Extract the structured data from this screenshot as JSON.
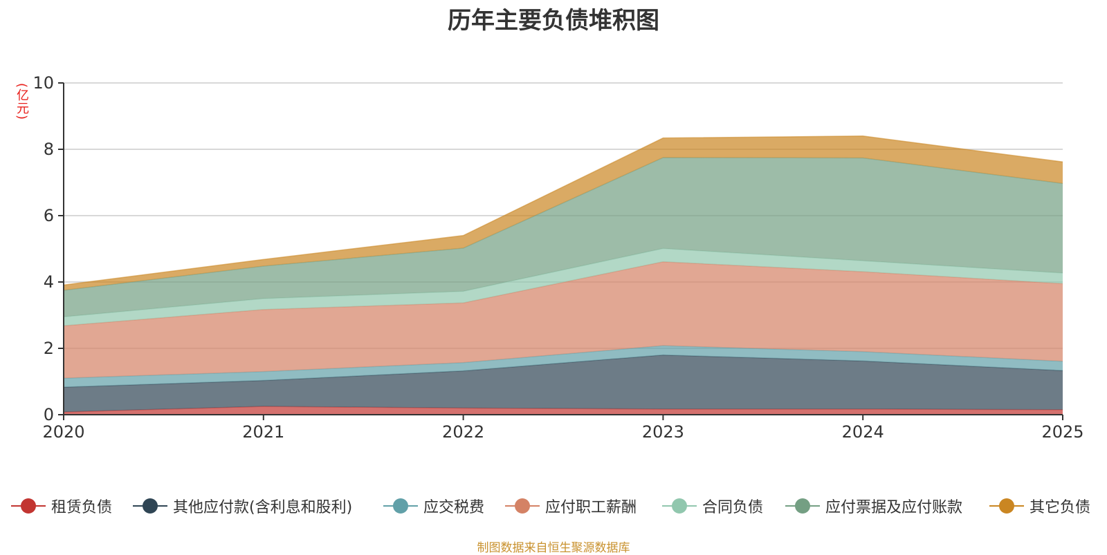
{
  "chart_data": {
    "type": "area",
    "stacked": true,
    "title": "历年主要负债堆积图",
    "ylabel": "(亿元)",
    "xlabel": "",
    "categories": [
      "2020",
      "2021",
      "2022",
      "2023",
      "2024",
      "2025"
    ],
    "ylim": [
      0,
      10
    ],
    "yticks": [
      0,
      2,
      4,
      6,
      8,
      10
    ],
    "grid": true,
    "legend_position": "bottom",
    "series": [
      {
        "name": "租赁负债",
        "color": "#c23531",
        "values": [
          0.08,
          0.25,
          0.2,
          0.17,
          0.17,
          0.15
        ]
      },
      {
        "name": "其他应付款(含利息和股利)",
        "color": "#2f4554",
        "values": [
          0.75,
          0.78,
          1.12,
          1.63,
          1.45,
          1.18
        ]
      },
      {
        "name": "应交税费",
        "color": "#61a0a8",
        "values": [
          0.27,
          0.27,
          0.25,
          0.28,
          0.28,
          0.28
        ]
      },
      {
        "name": "应付职工薪酬",
        "color": "#d48265",
        "values": [
          1.58,
          1.87,
          1.8,
          2.53,
          2.41,
          2.34
        ]
      },
      {
        "name": "合同负债",
        "color": "#91c7ae",
        "values": [
          0.27,
          0.33,
          0.35,
          0.4,
          0.33,
          0.32
        ]
      },
      {
        "name": "应付票据及应付账款",
        "color": "#749f83",
        "values": [
          0.8,
          0.98,
          1.3,
          2.74,
          3.1,
          2.7
        ]
      },
      {
        "name": "其它负债",
        "color": "#ca8622",
        "values": [
          0.16,
          0.2,
          0.38,
          0.59,
          0.66,
          0.65
        ]
      }
    ]
  },
  "source_text": "制图数据来自恒生聚源数据库"
}
